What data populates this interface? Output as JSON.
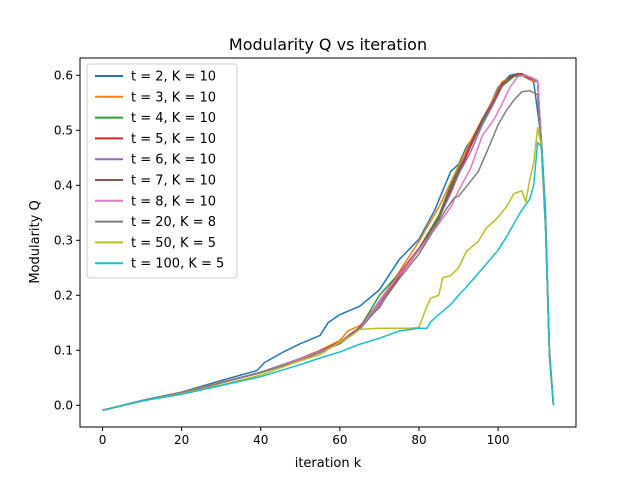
{
  "chart_data": {
    "type": "line",
    "title": "Modularity Q vs iteration",
    "xlabel": "iteration k",
    "ylabel": "Modularity Q",
    "xlim": [
      -5.7,
      119.7
    ],
    "ylim": [
      -0.0395,
      0.6315
    ],
    "xticks": [
      0,
      20,
      40,
      60,
      80,
      100
    ],
    "yticks": [
      0.0,
      0.1,
      0.2,
      0.3,
      0.4,
      0.5,
      0.6
    ],
    "ytick_labels": [
      "0.0",
      "0.1",
      "0.2",
      "0.3",
      "0.4",
      "0.5",
      "0.6"
    ],
    "grid": false,
    "legend_position": "upper-left",
    "series": [
      {
        "name": "t = 2, K = 10",
        "color": "#1f77b4",
        "x": [
          0,
          10,
          20,
          30,
          39,
          41,
          46,
          50,
          55,
          57,
          60,
          65,
          70,
          75,
          80,
          84,
          88,
          90,
          92,
          95,
          97,
          100,
          103,
          105,
          107,
          109,
          111,
          112,
          113,
          114
        ],
        "y": [
          -0.009,
          0.009,
          0.024,
          0.045,
          0.063,
          0.078,
          0.098,
          0.112,
          0.127,
          0.15,
          0.165,
          0.18,
          0.21,
          0.265,
          0.302,
          0.355,
          0.425,
          0.438,
          0.47,
          0.5,
          0.53,
          0.578,
          0.6,
          0.603,
          0.6,
          0.588,
          0.48,
          0.35,
          0.1,
          0.0
        ]
      },
      {
        "name": "t = 3, K = 10",
        "color": "#ff7f0e",
        "x": [
          0,
          10,
          20,
          30,
          40,
          50,
          55,
          60,
          62,
          65,
          70,
          75,
          80,
          85,
          88,
          90,
          93,
          96,
          99,
          101,
          104,
          106,
          108,
          110,
          111,
          112,
          113,
          114
        ],
        "y": [
          -0.009,
          0.008,
          0.023,
          0.042,
          0.06,
          0.085,
          0.1,
          0.118,
          0.135,
          0.145,
          0.178,
          0.243,
          0.298,
          0.36,
          0.405,
          0.435,
          0.48,
          0.52,
          0.56,
          0.588,
          0.6,
          0.6,
          0.592,
          0.588,
          0.47,
          0.33,
          0.09,
          0.0
        ]
      },
      {
        "name": "t = 4, K = 10",
        "color": "#2ca02c",
        "x": [
          0,
          10,
          20,
          30,
          40,
          50,
          55,
          60,
          65,
          70,
          75,
          80,
          85,
          88,
          90,
          93,
          96,
          99,
          101,
          104,
          106,
          108,
          110,
          111,
          112,
          113,
          114
        ],
        "y": [
          -0.009,
          0.008,
          0.022,
          0.041,
          0.059,
          0.083,
          0.097,
          0.113,
          0.14,
          0.2,
          0.24,
          0.285,
          0.345,
          0.4,
          0.43,
          0.47,
          0.515,
          0.553,
          0.58,
          0.598,
          0.6,
          0.594,
          0.59,
          0.47,
          0.33,
          0.09,
          0.0
        ]
      },
      {
        "name": "t = 5, K = 10",
        "color": "#d62728",
        "x": [
          0,
          10,
          20,
          30,
          40,
          50,
          55,
          60,
          65,
          70,
          75,
          80,
          85,
          88,
          90,
          93,
          96,
          99,
          101,
          104,
          106,
          108,
          110,
          111,
          112,
          113,
          114
        ],
        "y": [
          -0.009,
          0.008,
          0.022,
          0.041,
          0.06,
          0.085,
          0.099,
          0.115,
          0.142,
          0.178,
          0.235,
          0.282,
          0.34,
          0.39,
          0.42,
          0.47,
          0.52,
          0.555,
          0.585,
          0.6,
          0.603,
          0.594,
          0.59,
          0.47,
          0.33,
          0.09,
          0.0
        ]
      },
      {
        "name": "t = 6, K = 10",
        "color": "#9467bd",
        "x": [
          0,
          10,
          20,
          30,
          40,
          50,
          55,
          60,
          65,
          70,
          75,
          80,
          85,
          88,
          90,
          93,
          96,
          99,
          101,
          103,
          105,
          107,
          109,
          110,
          111,
          112,
          113,
          114
        ],
        "y": [
          -0.009,
          0.008,
          0.022,
          0.041,
          0.06,
          0.085,
          0.098,
          0.114,
          0.142,
          0.185,
          0.24,
          0.285,
          0.34,
          0.385,
          0.42,
          0.46,
          0.51,
          0.55,
          0.58,
          0.598,
          0.603,
          0.6,
          0.592,
          0.588,
          0.47,
          0.33,
          0.09,
          0.0
        ]
      },
      {
        "name": "t = 7, K = 10",
        "color": "#8c564b",
        "x": [
          0,
          10,
          20,
          30,
          40,
          50,
          55,
          60,
          65,
          70,
          75,
          80,
          85,
          88,
          90,
          93,
          96,
          99,
          101,
          103,
          105,
          107,
          109,
          110,
          111,
          112,
          113,
          114
        ],
        "y": [
          -0.009,
          0.008,
          0.022,
          0.041,
          0.06,
          0.084,
          0.098,
          0.113,
          0.14,
          0.19,
          0.24,
          0.285,
          0.34,
          0.395,
          0.425,
          0.475,
          0.52,
          0.555,
          0.582,
          0.598,
          0.603,
          0.6,
          0.594,
          0.59,
          0.47,
          0.33,
          0.09,
          0.0
        ]
      },
      {
        "name": "t = 8, K = 10",
        "color": "#e377c2",
        "x": [
          0,
          10,
          20,
          30,
          40,
          50,
          55,
          60,
          65,
          70,
          75,
          80,
          85,
          88,
          90,
          93,
          96,
          99,
          101,
          103,
          105,
          107,
          109,
          110,
          111,
          112,
          113,
          114
        ],
        "y": [
          -0.009,
          0.008,
          0.022,
          0.041,
          0.06,
          0.084,
          0.098,
          0.112,
          0.138,
          0.19,
          0.238,
          0.282,
          0.33,
          0.36,
          0.39,
          0.43,
          0.49,
          0.52,
          0.548,
          0.578,
          0.598,
          0.6,
          0.594,
          0.59,
          0.47,
          0.33,
          0.09,
          0.0
        ]
      },
      {
        "name": "t = 20, K = 8",
        "color": "#7f7f7f",
        "x": [
          0,
          10,
          20,
          30,
          40,
          50,
          55,
          60,
          65,
          70,
          75,
          80,
          83,
          85,
          87,
          89,
          90,
          92,
          95,
          98,
          100,
          102,
          104,
          106,
          108,
          110,
          111,
          112,
          113,
          114
        ],
        "y": [
          -0.009,
          0.008,
          0.022,
          0.041,
          0.06,
          0.082,
          0.096,
          0.112,
          0.138,
          0.18,
          0.23,
          0.275,
          0.31,
          0.335,
          0.358,
          0.378,
          0.38,
          0.398,
          0.425,
          0.475,
          0.51,
          0.535,
          0.555,
          0.57,
          0.572,
          0.565,
          0.46,
          0.32,
          0.09,
          0.0
        ]
      },
      {
        "name": "t = 50, K = 5",
        "color": "#bcbd22",
        "x": [
          0,
          10,
          20,
          30,
          40,
          50,
          55,
          60,
          63,
          65,
          70,
          73,
          75,
          78,
          80,
          82,
          83,
          85,
          86,
          88,
          90,
          92,
          95,
          97,
          100,
          102,
          104,
          106,
          107,
          108,
          109,
          110,
          111,
          112,
          113,
          114
        ],
        "y": [
          -0.009,
          0.008,
          0.021,
          0.037,
          0.055,
          0.081,
          0.092,
          0.115,
          0.127,
          0.138,
          0.14,
          0.14,
          0.14,
          0.14,
          0.142,
          0.18,
          0.195,
          0.2,
          0.232,
          0.236,
          0.25,
          0.28,
          0.298,
          0.322,
          0.342,
          0.36,
          0.385,
          0.39,
          0.37,
          0.41,
          0.44,
          0.505,
          0.47,
          0.33,
          0.09,
          0.0
        ]
      },
      {
        "name": "t = 100, K = 5",
        "color": "#17becf",
        "x": [
          0,
          10,
          20,
          30,
          40,
          50,
          55,
          60,
          65,
          70,
          75,
          80,
          82,
          83,
          85,
          88,
          90,
          92,
          95,
          98,
          100,
          102,
          104,
          106,
          108,
          109,
          110,
          111,
          112,
          113,
          114
        ],
        "y": [
          -0.009,
          0.008,
          0.02,
          0.036,
          0.052,
          0.074,
          0.086,
          0.097,
          0.111,
          0.122,
          0.135,
          0.14,
          0.14,
          0.152,
          0.165,
          0.183,
          0.2,
          0.215,
          0.24,
          0.265,
          0.282,
          0.305,
          0.33,
          0.355,
          0.375,
          0.4,
          0.478,
          0.47,
          0.33,
          0.09,
          0.0
        ]
      }
    ]
  }
}
